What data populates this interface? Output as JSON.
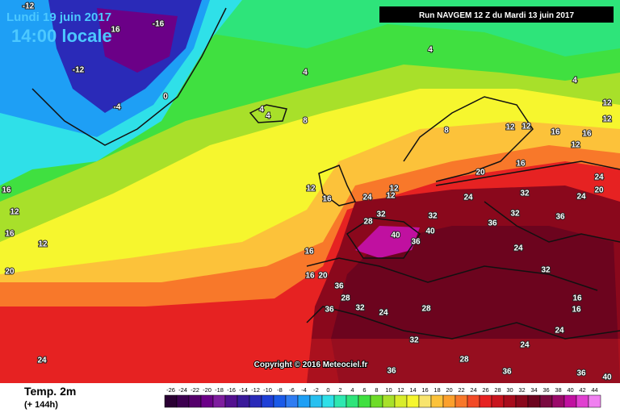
{
  "header": {
    "date": "Lundi 19 juin 2017",
    "time": "14:00 locale",
    "run": "Run NAVGEM 12 Z du Mardi 13 juin 2017"
  },
  "copyright": "Copyright © 2016 Meteociel.fr",
  "legend": {
    "title": "Temp. 2m",
    "lead": "(+ 144h)",
    "ticks": [
      -26,
      -24,
      -22,
      -20,
      -18,
      -16,
      -14,
      -12,
      -10,
      -8,
      -6,
      -4,
      -2,
      0,
      2,
      4,
      6,
      8,
      10,
      12,
      14,
      16,
      18,
      20,
      22,
      24,
      26,
      28,
      30,
      32,
      34,
      36,
      38,
      40,
      42,
      44
    ],
    "colors": [
      "#2a0033",
      "#3d0050",
      "#55006b",
      "#6b0087",
      "#7e1d9e",
      "#53108f",
      "#3a1a9a",
      "#2a2ab8",
      "#1f3fd6",
      "#1a5ae8",
      "#2f7cf2",
      "#1e9ff5",
      "#28c0f0",
      "#2fe0e8",
      "#2ee8b0",
      "#2ee47a",
      "#40e040",
      "#6edc28",
      "#a8e02a",
      "#d8ec2a",
      "#f6f62e",
      "#f8e46e",
      "#fcc23a",
      "#fca02c",
      "#f8782a",
      "#f24a26",
      "#e62222",
      "#c8141e",
      "#a80c1c",
      "#8a081c",
      "#6c041e",
      "#7a0a40",
      "#9a0a6a",
      "#c010a0",
      "#e040d0",
      "#f080f0"
    ]
  },
  "map": {
    "labels": [
      -12,
      -16,
      16,
      -12,
      0,
      -4,
      4,
      4,
      4,
      4,
      4,
      8,
      8,
      12,
      12,
      16,
      12,
      12,
      16,
      12,
      20,
      16,
      24,
      20,
      24,
      12,
      16,
      12,
      12,
      24,
      24,
      32,
      32,
      28,
      32,
      36,
      32,
      36,
      40,
      36,
      40,
      16,
      16,
      20,
      36,
      28,
      32,
      36,
      24,
      32,
      28,
      36,
      36,
      24,
      20,
      16,
      12,
      12,
      16,
      16,
      16,
      24,
      24,
      36,
      40,
      24,
      32,
      28
    ]
  }
}
